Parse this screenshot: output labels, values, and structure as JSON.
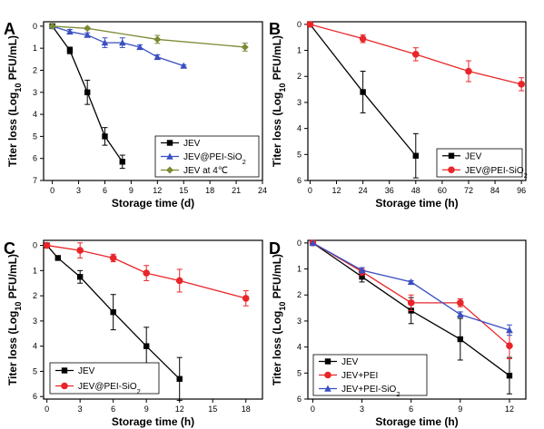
{
  "chart_data": [
    {
      "panel": "A",
      "type": "line",
      "xlabel": "Storage time (d)",
      "ylabel": "Titer loss (Log10 PFU/mL)",
      "xlim": [
        -1,
        24
      ],
      "ylim": [
        -0.2,
        7
      ],
      "xticks": [
        0,
        3,
        6,
        9,
        12,
        15,
        18,
        21,
        24
      ],
      "yticks": [
        0,
        1,
        2,
        3,
        4,
        5,
        6,
        7
      ],
      "legend_position": "bottom-right",
      "series": [
        {
          "name": "JEV",
          "marker": "square",
          "color": "#000000",
          "x": [
            0,
            2,
            4,
            6,
            8
          ],
          "y": [
            0,
            1.1,
            3.0,
            5.0,
            6.15
          ],
          "err": [
            0,
            0.15,
            0.55,
            0.4,
            0.3
          ]
        },
        {
          "name": "JEV@PEI-SiO2",
          "marker": "triangle",
          "color": "#3a4fc2",
          "x": [
            0,
            2,
            4,
            6,
            8,
            10,
            12,
            15
          ],
          "y": [
            0,
            0.25,
            0.4,
            0.75,
            0.75,
            0.95,
            1.4,
            1.8
          ],
          "err": [
            0,
            0.1,
            0.1,
            0.22,
            0.22,
            0.1,
            0.1,
            0.05
          ]
        },
        {
          "name": "JEV at 4℃",
          "marker": "diamond",
          "color": "#7a8a34",
          "x": [
            0,
            4,
            12,
            22
          ],
          "y": [
            0,
            0.1,
            0.6,
            0.95
          ],
          "err": [
            0,
            0.05,
            0.18,
            0.18
          ]
        }
      ]
    },
    {
      "panel": "B",
      "type": "line",
      "xlabel": "Storage time (h)",
      "ylabel": "Titer loss (Log10 PFU/mL)",
      "xlim": [
        -1,
        98
      ],
      "ylim": [
        -0.1,
        6
      ],
      "xticks": [
        0,
        12,
        24,
        36,
        48,
        60,
        72,
        84,
        96
      ],
      "yticks": [
        0,
        1,
        2,
        3,
        4,
        5,
        6
      ],
      "legend_position": "bottom-right",
      "series": [
        {
          "name": "JEV",
          "marker": "square",
          "color": "#000000",
          "x": [
            0,
            24,
            48
          ],
          "y": [
            0,
            2.6,
            5.05
          ],
          "err": [
            0,
            0.8,
            0.85
          ]
        },
        {
          "name": "JEV@PEI-SiO2",
          "marker": "circle",
          "color": "#e8262a",
          "x": [
            0,
            24,
            48,
            72,
            96
          ],
          "y": [
            0,
            0.55,
            1.15,
            1.8,
            2.3
          ],
          "err": [
            0,
            0.15,
            0.25,
            0.4,
            0.25
          ]
        }
      ]
    },
    {
      "panel": "C",
      "type": "line",
      "xlabel": "Storage time (h)",
      "ylabel": "Titer loss (Log10 PFU/mL)",
      "xlim": [
        -0.3,
        19.5
      ],
      "ylim": [
        -0.2,
        6.1
      ],
      "xticks": [
        0,
        3,
        6,
        9,
        12,
        15,
        18
      ],
      "yticks": [
        0,
        1,
        2,
        3,
        4,
        5,
        6
      ],
      "legend_position": "bottom-left",
      "series": [
        {
          "name": "JEV",
          "marker": "square",
          "color": "#000000",
          "x": [
            0,
            1,
            3,
            6,
            9,
            12
          ],
          "y": [
            0,
            0.5,
            1.25,
            2.65,
            4.0,
            5.3
          ],
          "err": [
            0,
            0.05,
            0.25,
            0.7,
            0.75,
            0.85
          ]
        },
        {
          "name": "JEV@PEI-SiO2",
          "marker": "circle",
          "color": "#e8262a",
          "x": [
            0,
            3,
            6,
            9,
            12,
            18
          ],
          "y": [
            0,
            0.2,
            0.5,
            1.1,
            1.4,
            2.1
          ],
          "err": [
            0,
            0.3,
            0.15,
            0.3,
            0.45,
            0.3
          ]
        }
      ]
    },
    {
      "panel": "D",
      "type": "line",
      "xlabel": "Storage time (h)",
      "ylabel": "Titer loss (Log10 PFU/mL)",
      "xlim": [
        -0.3,
        13
      ],
      "ylim": [
        -0.1,
        6
      ],
      "xticks": [
        0,
        3,
        6,
        9,
        12
      ],
      "yticks": [
        0,
        1,
        2,
        3,
        4,
        5,
        6
      ],
      "legend_position": "bottom-left",
      "series": [
        {
          "name": "JEV",
          "marker": "square",
          "color": "#000000",
          "x": [
            0,
            3,
            6,
            9,
            12
          ],
          "y": [
            0,
            1.3,
            2.6,
            3.7,
            5.1
          ],
          "err": [
            0,
            0.2,
            0.5,
            0.8,
            0.7
          ]
        },
        {
          "name": "JEV+PEI",
          "marker": "circle",
          "color": "#e8262a",
          "x": [
            0,
            3,
            6,
            9,
            12
          ],
          "y": [
            0,
            1.1,
            2.3,
            2.3,
            3.95
          ],
          "err": [
            0,
            0.15,
            0.3,
            0.15,
            0.5
          ]
        },
        {
          "name": "JEV+PEI-SiO2",
          "marker": "triangle",
          "color": "#3a4fc2",
          "x": [
            0,
            3,
            6,
            9,
            12
          ],
          "y": [
            0,
            1.05,
            1.5,
            2.75,
            3.35
          ],
          "err": [
            0,
            0.1,
            0.05,
            0.1,
            0.2
          ]
        }
      ]
    }
  ]
}
